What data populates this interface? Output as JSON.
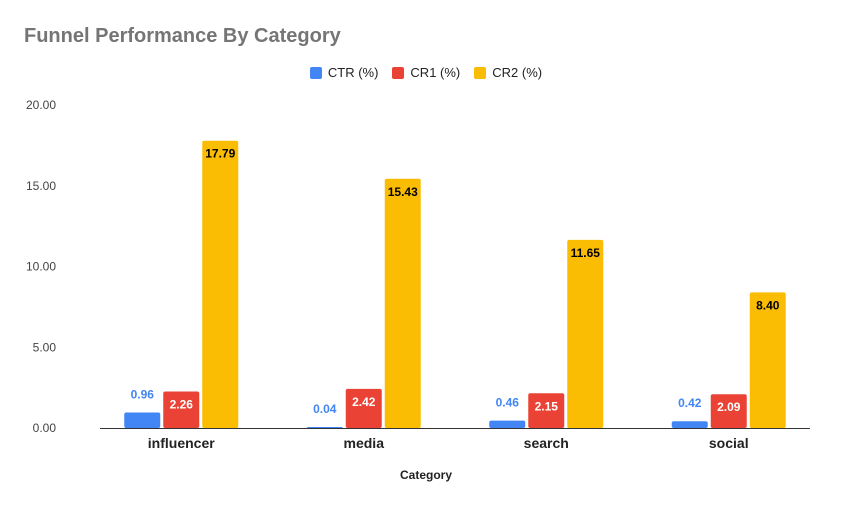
{
  "chart_data": {
    "type": "bar",
    "title": "Funnel Performance By Category",
    "xlabel": "Category",
    "ylabel": "",
    "categories": [
      "influencer",
      "media",
      "search",
      "social"
    ],
    "series": [
      {
        "name": "CTR (%)",
        "color": "#4285f4",
        "label_color": "#4285f4",
        "values": [
          0.96,
          0.04,
          0.46,
          0.42
        ],
        "labels": [
          "0.96",
          "0.04",
          "0.46",
          "0.42"
        ]
      },
      {
        "name": "CR1 (%)",
        "color": "#ea4335",
        "label_color": "#ffffff",
        "values": [
          2.26,
          2.42,
          2.15,
          2.09
        ],
        "labels": [
          "2.26",
          "2.42",
          "2.15",
          "2.09"
        ]
      },
      {
        "name": "CR2 (%)",
        "color": "#fbbc04",
        "label_color": "#000000",
        "values": [
          17.79,
          15.43,
          11.65,
          8.4
        ],
        "labels": [
          "17.79",
          "15.43",
          "11.65",
          "8.40"
        ]
      }
    ],
    "ylim": [
      0,
      20
    ],
    "yticks": [
      "0.00",
      "5.00",
      "10.00",
      "15.00",
      "20.00"
    ],
    "grid": false,
    "legend": "top-center"
  }
}
